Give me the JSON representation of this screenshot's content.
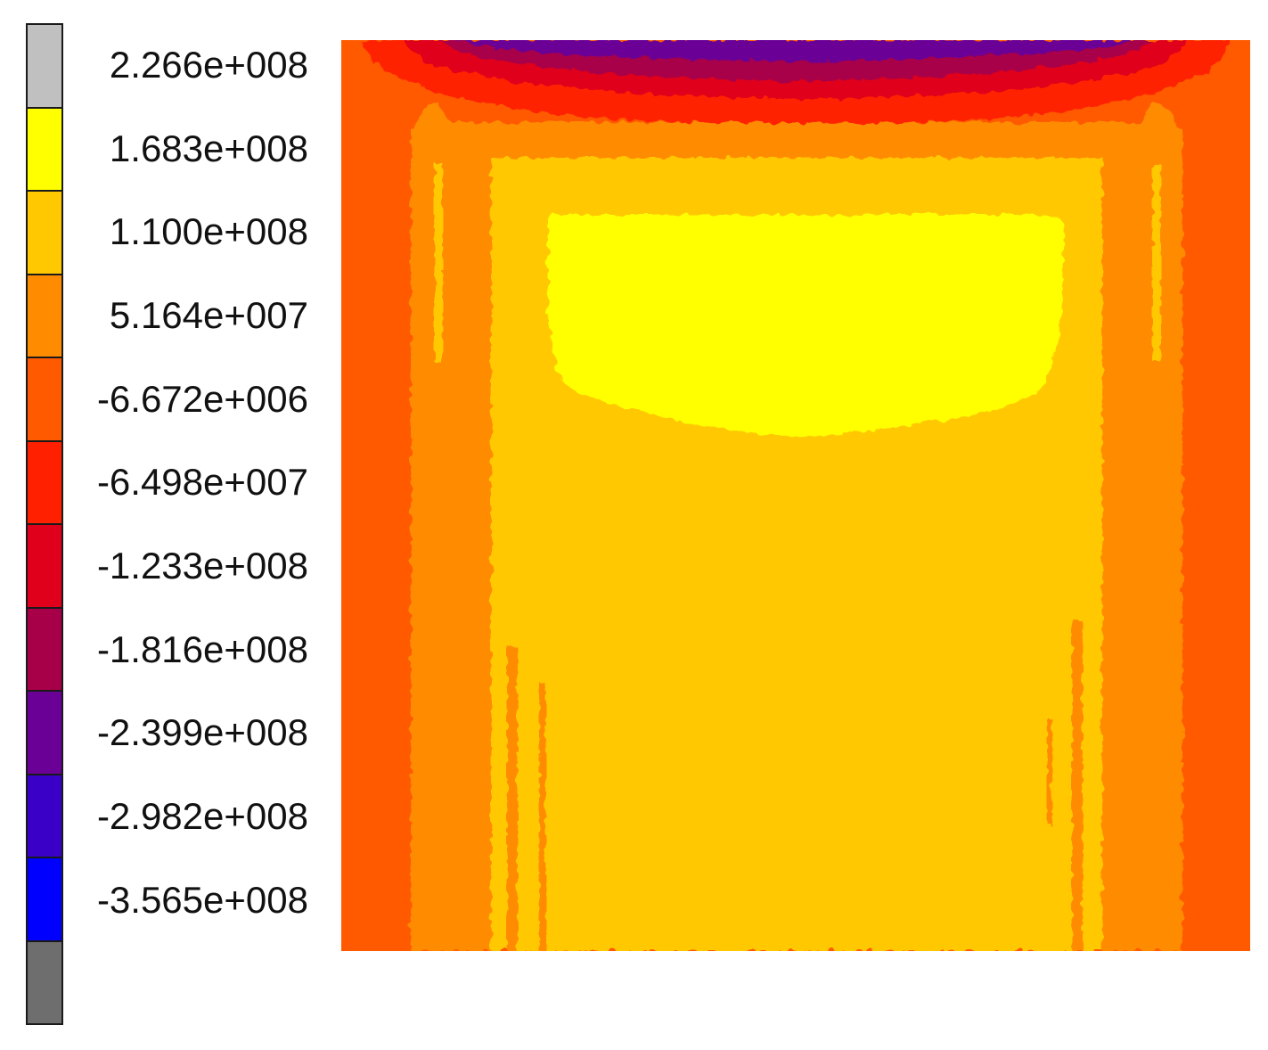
{
  "chart_data": {
    "type": "heatmap",
    "title": "",
    "xlabel": "",
    "ylabel": "",
    "colorbar": {
      "levels": [
        {
          "label": "2.266e+008",
          "value": 226600000,
          "color": "#c0c0c0"
        },
        {
          "label": "1.683e+008",
          "value": 168300000,
          "color": "#ffff00"
        },
        {
          "label": "1.100e+008",
          "value": 110000000,
          "color": "#ffc800"
        },
        {
          "label": "5.164e+007",
          "value": 51640000,
          "color": "#ff8c00"
        },
        {
          "label": "-6.672e+006",
          "value": -6672000,
          "color": "#ff5a00"
        },
        {
          "label": "-6.498e+007",
          "value": -64980000,
          "color": "#ff2000"
        },
        {
          "label": "-1.233e+008",
          "value": -123300000,
          "color": "#e0001c"
        },
        {
          "label": "-1.816e+008",
          "value": -181600000,
          "color": "#a80048"
        },
        {
          "label": "-2.399e+008",
          "value": -239900000,
          "color": "#6a0096"
        },
        {
          "label": "-2.982e+008",
          "value": -298200000,
          "color": "#3a00c8"
        },
        {
          "label": "-3.565e+008",
          "value": -356500000,
          "color": "#0000ff"
        }
      ],
      "overflow_colors": {
        "above": "#c0c0c0",
        "below": "#6e6e6e"
      },
      "swatches": [
        "#c0c0c0",
        "#ffff00",
        "#ffc800",
        "#ff8c00",
        "#ff5a00",
        "#ff2000",
        "#e0001c",
        "#a80048",
        "#6a0096",
        "#3a00c8",
        "#0000ff",
        "#6e6e6e"
      ]
    },
    "field_description": "contour field: peak compressive (negative) band along top edge, high positive region in upper-center, moderate positive in body"
  }
}
